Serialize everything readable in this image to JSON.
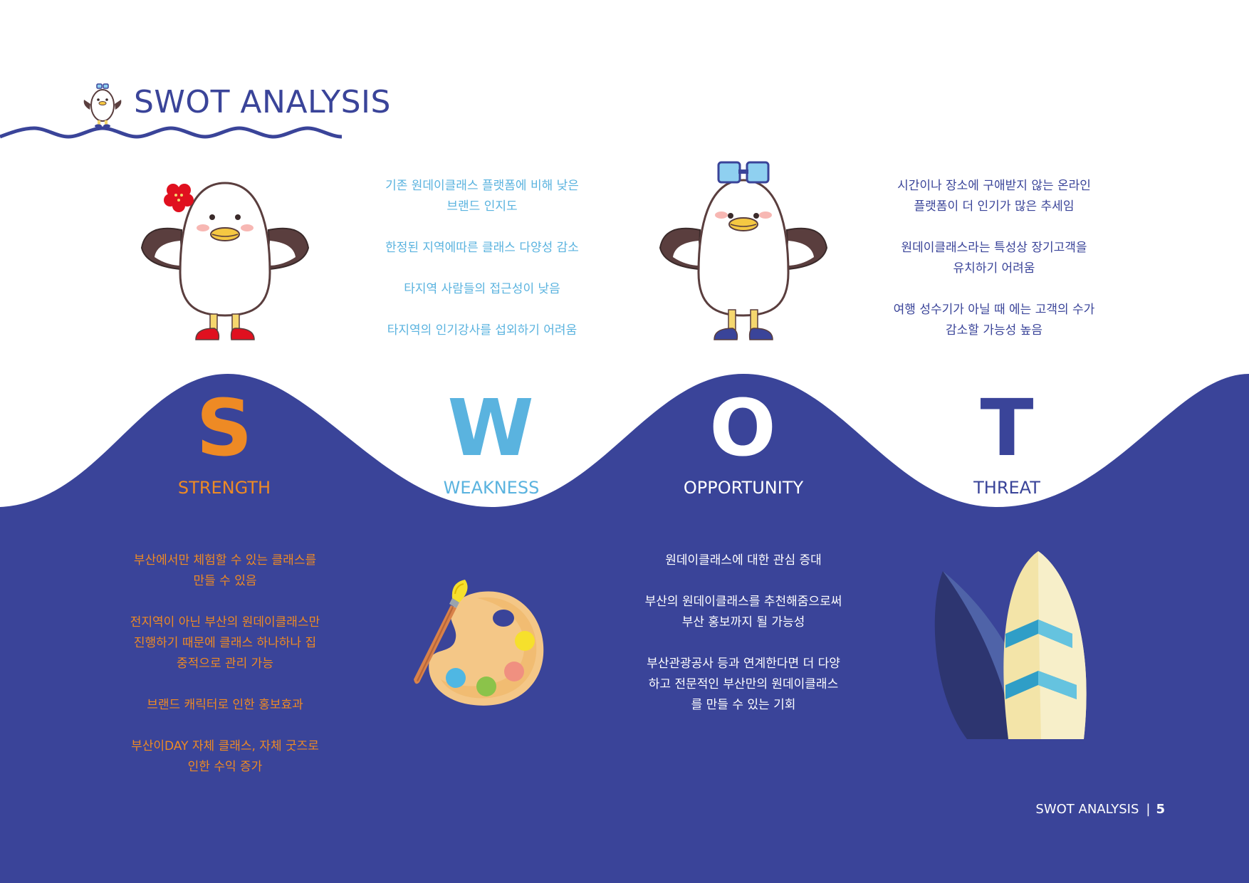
{
  "header": {
    "title": "SWOT ANALYSIS"
  },
  "colors": {
    "navy": "#3a4499",
    "orange": "#ee8a24",
    "sky": "#5ab3df",
    "white": "#ffffff"
  },
  "quadrants": {
    "strength": {
      "letter": "S",
      "label": "STRENGTH",
      "items": [
        "부산에서만 체험할 수 있는 클래스를\n만들 수 있음",
        "전지역이 아닌 부산의 원데이클래스만\n진행하기 때문에 클래스 하나하나 집\n중적으로 관리 가능",
        "브랜드 캐릭터로 인한 홍보효과",
        "부산이DAY 자체 클래스, 자체 굿즈로\n인한 수익 증가"
      ]
    },
    "weakness": {
      "letter": "W",
      "label": "WEAKNESS",
      "items": [
        "기존 원데이클래스 플랫폼에 비해 낮은\n브랜드 인지도",
        "한정된 지역에따른 클래스 다양성 감소",
        "타지역 사람들의 접근성이 낮음",
        "타지역의 인기강사를 섭외하기 어려움"
      ]
    },
    "opportunity": {
      "letter": "O",
      "label": "OPPORTUNITY",
      "items": [
        "원데이클래스에 대한 관심 증대",
        "부산의 원데이클래스를 추천해줌으로써\n부산 홍보까지 될 가능성",
        "부산관광공사 등과 연계한다면 더 다양\n하고 전문적인 부산만의 원데이클래스\n를 만들 수 있는 기회"
      ]
    },
    "threat": {
      "letter": "T",
      "label": "THREAT",
      "items": [
        "시간이나 장소에 구애받지 않는 온라인\n플랫폼이 더 인기가 많은 추세임",
        "원데이클래스라는 특성상 장기고객을\n유치하기 어려움",
        "여행 성수기가 아닐 때 에는 고객의 수가\n감소할 가능성 높음"
      ]
    }
  },
  "footer": {
    "label": "SWOT ANALYSIS",
    "separator": "|",
    "page": "5"
  },
  "icons": [
    "mascot-small-icon",
    "seagull-flower-icon",
    "seagull-goggles-icon",
    "paint-palette-icon",
    "surfboards-icon"
  ]
}
